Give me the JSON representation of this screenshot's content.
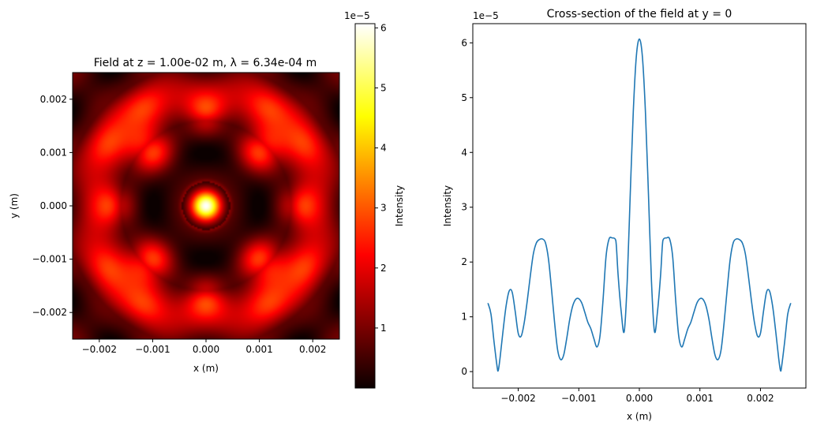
{
  "chart_data": [
    {
      "type": "heatmap",
      "title": "Field at z = 1.00e-02 m, λ = 6.34e-04 m",
      "xlabel": "x (m)",
      "ylabel": "y (m)",
      "xlim": [
        -0.0025,
        0.0025
      ],
      "ylim": [
        -0.0025,
        0.0025
      ],
      "x_ticks": [
        -0.002,
        -0.001,
        0.0,
        0.001,
        0.002
      ],
      "x_tick_labels": [
        "−0.002",
        "−0.001",
        "0.000",
        "0.001",
        "0.002"
      ],
      "y_ticks": [
        -0.002,
        -0.001,
        0.0,
        0.001,
        0.002
      ],
      "y_tick_labels": [
        "−0.002",
        "−0.001",
        "0.000",
        "0.001",
        "0.002"
      ],
      "colormap": "hot",
      "colorbar": {
        "label": "Intensity",
        "multiplier": "1e−5",
        "range": [
          0,
          6.07
        ],
        "ticks": [
          1,
          2,
          3,
          4,
          5,
          6
        ],
        "tick_labels": [
          "1",
          "2",
          "3",
          "4",
          "5",
          "6"
        ]
      },
      "peak_intensity_e5": 6.07
    },
    {
      "type": "line",
      "title": "Cross-section of the field at y = 0",
      "xlabel": "x (m)",
      "ylabel": "Intensity",
      "y_multiplier": "1e−5",
      "xlim": [
        -0.00275,
        0.00275
      ],
      "ylim": [
        -0.3,
        6.35
      ],
      "x_ticks": [
        -0.002,
        -0.001,
        0.0,
        0.001,
        0.002
      ],
      "x_tick_labels": [
        "−0.002",
        "−0.001",
        "0.000",
        "0.001",
        "0.002"
      ],
      "y_ticks": [
        0,
        1,
        2,
        3,
        4,
        5,
        6
      ],
      "y_tick_labels": [
        "0",
        "1",
        "2",
        "3",
        "4",
        "5",
        "6"
      ],
      "line_color": "#1f77b4",
      "series": [
        {
          "x": [
            0,
            5e-05,
            0.0001,
            0.00015,
            0.0002,
            0.00025,
            0.0003,
            0.00035,
            0.00038,
            0.0004,
            0.00045,
            0.0005,
            0.00055,
            0.0006,
            0.00065,
            0.0007,
            0.00075,
            0.0008,
            0.00085,
            0.0009,
            0.00095,
            0.001,
            0.00105,
            0.0011,
            0.00115,
            0.0012,
            0.00125,
            0.0013,
            0.00135,
            0.0014,
            0.00145,
            0.0015,
            0.00155,
            0.0016,
            0.00165,
            0.0017,
            0.00175,
            0.0018,
            0.00185,
            0.0019,
            0.00195,
            0.002,
            0.00205,
            0.0021,
            0.00215,
            0.0022,
            0.00225,
            0.0023,
            0.00233,
            0.00235,
            0.0024,
            0.00245,
            0.0025
          ],
          "y": [
            6.07,
            5.75,
            4.75,
            3.25,
            1.65,
            0.73,
            1.1,
            1.75,
            2.3,
            2.42,
            2.44,
            2.42,
            2.1,
            1.3,
            0.65,
            0.45,
            0.6,
            0.78,
            0.9,
            1.08,
            1.25,
            1.33,
            1.32,
            1.2,
            0.95,
            0.6,
            0.3,
            0.22,
            0.4,
            0.9,
            1.5,
            2.05,
            2.35,
            2.42,
            2.41,
            2.35,
            2.15,
            1.75,
            1.3,
            0.9,
            0.65,
            0.7,
            1.1,
            1.45,
            1.47,
            1.2,
            0.75,
            0.25,
            0.02,
            0.1,
            0.55,
            1.05,
            1.25
          ]
        }
      ]
    }
  ]
}
